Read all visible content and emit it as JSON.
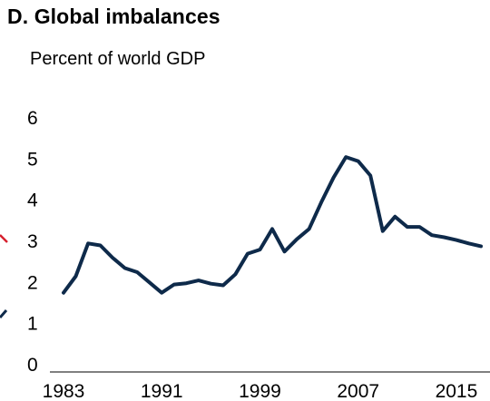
{
  "header": {
    "title": "D. Global imbalances",
    "subtitle": "Percent of world GDP"
  },
  "colors": {
    "line": "#0e2a4a",
    "partial_red": "#d6202e",
    "partial_navy": "#0e2a4a"
  },
  "chart_data": {
    "type": "line",
    "title": "D. Global imbalances",
    "subtitle": "Percent of world GDP",
    "xlabel": "",
    "ylabel": "",
    "ylim": [
      0,
      6
    ],
    "xlim": [
      1983,
      2017
    ],
    "grid": false,
    "y_ticks": [
      "0",
      "1",
      "2",
      "3",
      "4",
      "5",
      "6"
    ],
    "x_ticks": [
      "1983",
      "1991",
      "1999",
      "2007",
      "2015"
    ],
    "series": [
      {
        "x": [
          1983,
          1984,
          1985,
          1986,
          1987,
          1988,
          1989,
          1990,
          1991,
          1992,
          1993,
          1994,
          1995,
          1996,
          1997,
          1998,
          1999,
          2000,
          2001,
          2002,
          2003,
          2004,
          2005,
          2006,
          2007,
          2008,
          2009,
          2010,
          2011,
          2012,
          2013,
          2014,
          2015,
          2016,
          2017
        ],
        "values": [
          1.75,
          2.15,
          2.95,
          2.9,
          2.6,
          2.35,
          2.25,
          2.0,
          1.75,
          1.95,
          1.98,
          2.05,
          1.97,
          1.93,
          2.2,
          2.7,
          2.8,
          3.3,
          2.75,
          3.05,
          3.3,
          3.95,
          4.55,
          5.05,
          4.95,
          4.6,
          3.25,
          3.6,
          3.35,
          3.35,
          3.15,
          3.1,
          3.03,
          2.95,
          2.88
        ]
      }
    ]
  }
}
